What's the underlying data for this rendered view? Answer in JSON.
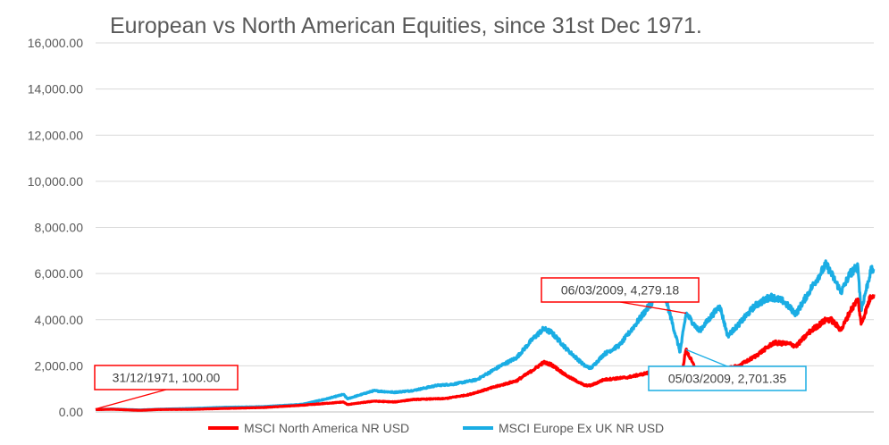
{
  "chart_data": {
    "type": "line",
    "title": "European vs North American Equities, since 31st Dec 1971.",
    "xlabel": "",
    "ylabel": "",
    "x_range": [
      "31/12/1971",
      "2021"
    ],
    "ylim": [
      0,
      16000
    ],
    "y_ticks": [
      "0.00",
      "2,000.00",
      "4,000.00",
      "6,000.00",
      "8,000.00",
      "10,000.00",
      "12,000.00",
      "14,000.00",
      "16,000.00"
    ],
    "grid": "horizontal",
    "legend_position": "bottom",
    "series": [
      {
        "name": "MSCI North America NR USD",
        "color": "#FF0000",
        "points": [
          [
            1971.99,
            100
          ],
          [
            1973.0,
            115
          ],
          [
            1974.8,
            70
          ],
          [
            1976.0,
            105
          ],
          [
            1978.0,
            110
          ],
          [
            1980.0,
            150
          ],
          [
            1982.5,
            190
          ],
          [
            1985.0,
            290
          ],
          [
            1987.6,
            430
          ],
          [
            1987.85,
            320
          ],
          [
            1989.5,
            470
          ],
          [
            1990.8,
            430
          ],
          [
            1992.0,
            540
          ],
          [
            1994.0,
            580
          ],
          [
            1995.5,
            750
          ],
          [
            1997.0,
            1060
          ],
          [
            1998.5,
            1350
          ],
          [
            1999.5,
            1800
          ],
          [
            2000.2,
            2150
          ],
          [
            2000.7,
            2050
          ],
          [
            2001.7,
            1550
          ],
          [
            2002.8,
            1150
          ],
          [
            2003.2,
            1150
          ],
          [
            2004.0,
            1400
          ],
          [
            2005.5,
            1500
          ],
          [
            2006.5,
            1650
          ],
          [
            2007.8,
            1850
          ],
          [
            2008.8,
            1250
          ],
          [
            2009.17,
            2701.35
          ],
          [
            2010.0,
            1550
          ],
          [
            2011.3,
            1800
          ],
          [
            2012.5,
            2000
          ],
          [
            2013.5,
            2400
          ],
          [
            2014.7,
            3000
          ],
          [
            2015.7,
            2950
          ],
          [
            2016.1,
            2850
          ],
          [
            2017.0,
            3500
          ],
          [
            2018.0,
            4000
          ],
          [
            2018.3,
            4000
          ],
          [
            2018.95,
            3550
          ],
          [
            2019.5,
            4350
          ],
          [
            2020.0,
            4900
          ],
          [
            2020.2,
            3800
          ],
          [
            2020.8,
            5000
          ],
          [
            2021.0,
            5100
          ]
        ],
        "labels": [
          {
            "x": "31/12/1971",
            "y": 100.0,
            "text": "31/12/1971, 100.00"
          }
        ]
      },
      {
        "name": "MSCI Europe Ex UK NR USD",
        "color": "#1AADE4",
        "points": [
          [
            1971.99,
            100
          ],
          [
            1973.0,
            130
          ],
          [
            1974.8,
            85
          ],
          [
            1976.0,
            120
          ],
          [
            1978.0,
            150
          ],
          [
            1980.0,
            200
          ],
          [
            1982.5,
            230
          ],
          [
            1985.0,
            330
          ],
          [
            1986.5,
            560
          ],
          [
            1987.6,
            760
          ],
          [
            1987.85,
            570
          ],
          [
            1989.5,
            920
          ],
          [
            1990.8,
            850
          ],
          [
            1992.0,
            930
          ],
          [
            1993.5,
            1150
          ],
          [
            1994.5,
            1200
          ],
          [
            1996.0,
            1400
          ],
          [
            1997.5,
            2000
          ],
          [
            1998.5,
            2350
          ],
          [
            1999.5,
            3150
          ],
          [
            2000.2,
            3600
          ],
          [
            2000.7,
            3450
          ],
          [
            2001.7,
            2700
          ],
          [
            2002.8,
            2000
          ],
          [
            2003.2,
            1900
          ],
          [
            2004.0,
            2500
          ],
          [
            2005.0,
            2900
          ],
          [
            2006.0,
            3800
          ],
          [
            2007.5,
            5200
          ],
          [
            2007.9,
            4900
          ],
          [
            2008.8,
            2600
          ],
          [
            2009.18,
            4279.18
          ],
          [
            2010.0,
            3500
          ],
          [
            2011.3,
            4600
          ],
          [
            2011.8,
            3300
          ],
          [
            2012.5,
            3800
          ],
          [
            2013.5,
            4600
          ],
          [
            2014.5,
            5000
          ],
          [
            2015.3,
            4800
          ],
          [
            2016.1,
            4250
          ],
          [
            2017.0,
            5300
          ],
          [
            2018.0,
            6400
          ],
          [
            2018.95,
            5200
          ],
          [
            2019.5,
            6000
          ],
          [
            2020.0,
            6300
          ],
          [
            2020.2,
            4400
          ],
          [
            2020.8,
            6100
          ],
          [
            2021.0,
            6200
          ]
        ],
        "labels": []
      }
    ],
    "callouts": [
      {
        "text": "06/03/2009, 4,279.18",
        "border": "#FF0000"
      },
      {
        "text": "05/03/2009, 2,701.35",
        "border": "#1AADE4"
      }
    ]
  }
}
